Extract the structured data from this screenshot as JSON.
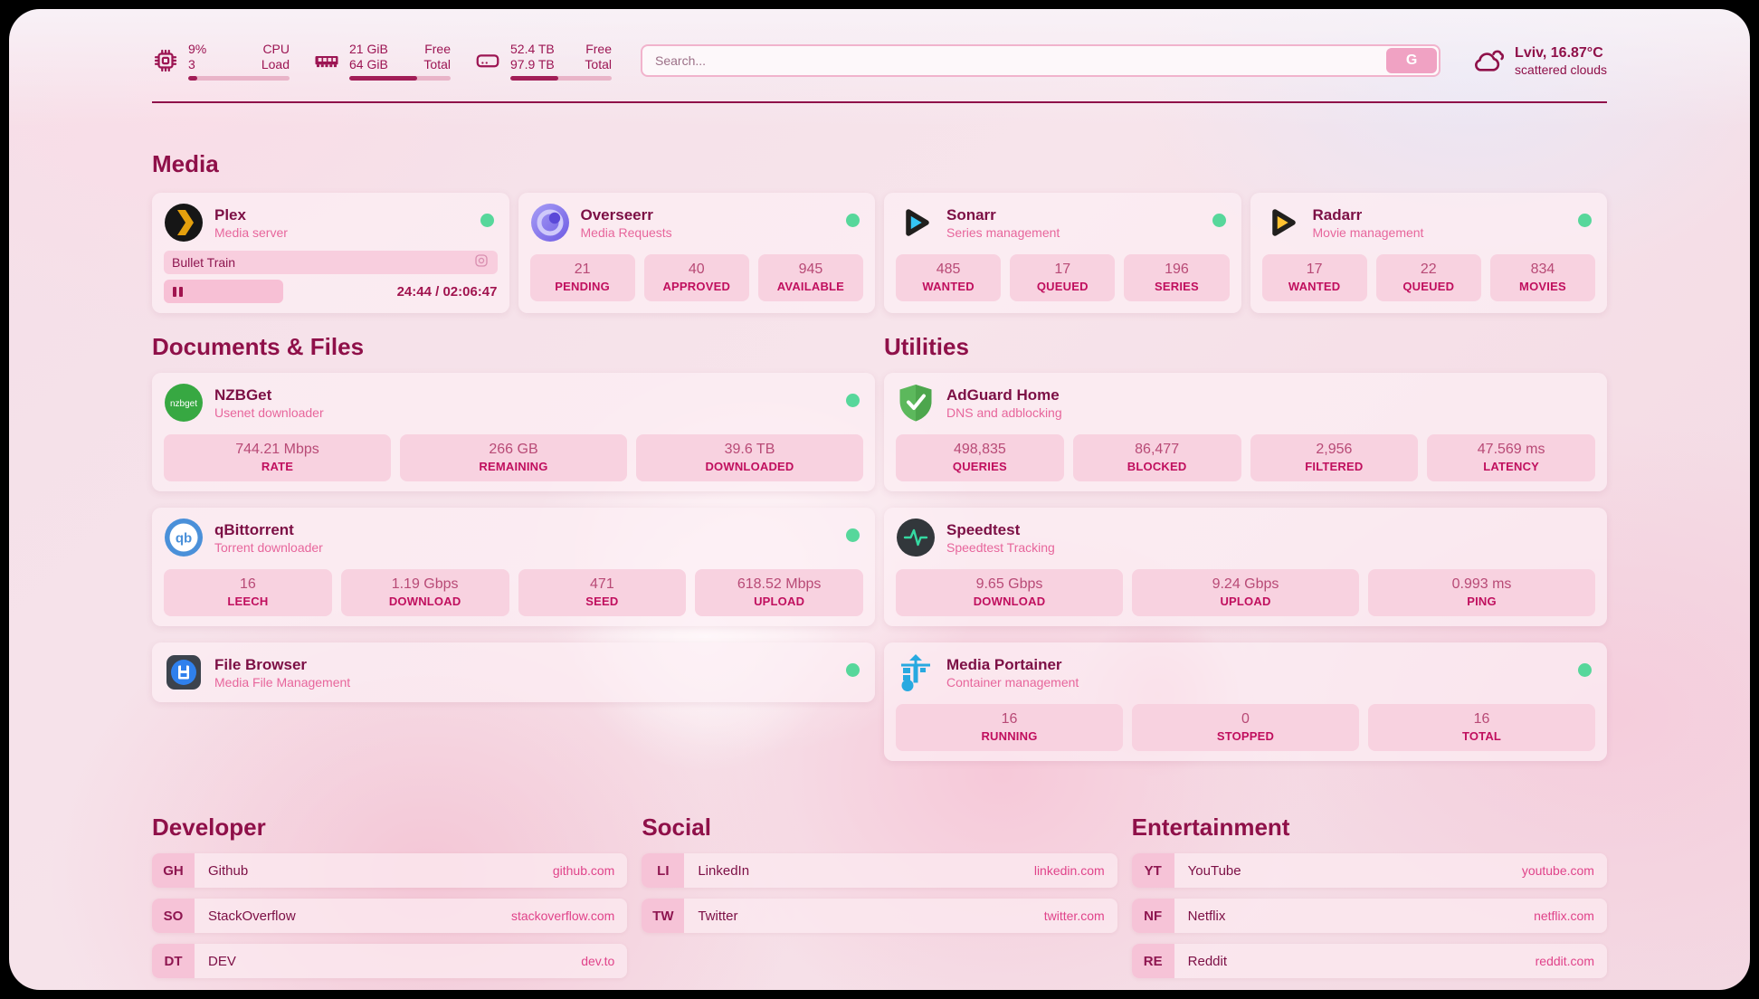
{
  "header": {
    "stats": [
      {
        "icon": "cpu-icon",
        "v1": "9%",
        "l1": "CPU",
        "v2": "3",
        "l2": "Load",
        "bar": 9
      },
      {
        "icon": "ram-icon",
        "v1": "21 GiB",
        "l1": "Free",
        "v2": "64 GiB",
        "l2": "Total",
        "bar": 67
      },
      {
        "icon": "disk-icon",
        "v1": "52.4 TB",
        "l1": "Free",
        "v2": "97.9 TB",
        "l2": "Total",
        "bar": 47
      }
    ],
    "search": {
      "placeholder": "Search...",
      "button_label": "G"
    },
    "weather": {
      "location": "Lviv, 16.87°C",
      "condition": "scattered clouds"
    }
  },
  "media": {
    "title": "Media",
    "plex": {
      "title": "Plex",
      "subtitle": "Media server",
      "online": true,
      "now_playing": "Bullet Train",
      "time": "24:44 / 02:06:47"
    },
    "overseerr": {
      "title": "Overseerr",
      "subtitle": "Media Requests",
      "online": true,
      "stats": [
        {
          "value": "21",
          "label": "PENDING"
        },
        {
          "value": "40",
          "label": "APPROVED"
        },
        {
          "value": "945",
          "label": "AVAILABLE"
        }
      ]
    },
    "sonarr": {
      "title": "Sonarr",
      "subtitle": "Series management",
      "online": true,
      "stats": [
        {
          "value": "485",
          "label": "WANTED"
        },
        {
          "value": "17",
          "label": "QUEUED"
        },
        {
          "value": "196",
          "label": "SERIES"
        }
      ]
    },
    "radarr": {
      "title": "Radarr",
      "subtitle": "Movie management",
      "online": true,
      "stats": [
        {
          "value": "17",
          "label": "WANTED"
        },
        {
          "value": "22",
          "label": "QUEUED"
        },
        {
          "value": "834",
          "label": "MOVIES"
        }
      ]
    }
  },
  "documents": {
    "title": "Documents & Files",
    "nzbget": {
      "title": "NZBGet",
      "subtitle": "Usenet downloader",
      "online": true,
      "stats": [
        {
          "value": "744.21 Mbps",
          "label": "RATE"
        },
        {
          "value": "266 GB",
          "label": "REMAINING"
        },
        {
          "value": "39.6 TB",
          "label": "DOWNLOADED"
        }
      ]
    },
    "qbittorrent": {
      "title": "qBittorrent",
      "subtitle": "Torrent downloader",
      "online": true,
      "stats": [
        {
          "value": "16",
          "label": "LEECH"
        },
        {
          "value": "1.19 Gbps",
          "label": "DOWNLOAD"
        },
        {
          "value": "471",
          "label": "SEED"
        },
        {
          "value": "618.52 Mbps",
          "label": "UPLOAD"
        }
      ]
    },
    "filebrowser": {
      "title": "File Browser",
      "subtitle": "Media File Management",
      "online": true
    }
  },
  "utilities": {
    "title": "Utilities",
    "adguard": {
      "title": "AdGuard Home",
      "subtitle": "DNS and adblocking",
      "stats": [
        {
          "value": "498,835",
          "label": "QUERIES"
        },
        {
          "value": "86,477",
          "label": "BLOCKED"
        },
        {
          "value": "2,956",
          "label": "FILTERED"
        },
        {
          "value": "47.569 ms",
          "label": "LATENCY"
        }
      ]
    },
    "speedtest": {
      "title": "Speedtest",
      "subtitle": "Speedtest Tracking",
      "stats": [
        {
          "value": "9.65 Gbps",
          "label": "DOWNLOAD"
        },
        {
          "value": "9.24 Gbps",
          "label": "UPLOAD"
        },
        {
          "value": "0.993 ms",
          "label": "PING"
        }
      ]
    },
    "portainer": {
      "title": "Media Portainer",
      "subtitle": "Container management",
      "online": true,
      "stats": [
        {
          "value": "16",
          "label": "RUNNING"
        },
        {
          "value": "0",
          "label": "STOPPED"
        },
        {
          "value": "16",
          "label": "TOTAL"
        }
      ]
    }
  },
  "developer": {
    "title": "Developer",
    "links": [
      {
        "badge": "GH",
        "label": "Github",
        "url": "github.com"
      },
      {
        "badge": "SO",
        "label": "StackOverflow",
        "url": "stackoverflow.com"
      },
      {
        "badge": "DT",
        "label": "DEV",
        "url": "dev.to"
      }
    ]
  },
  "social": {
    "title": "Social",
    "links": [
      {
        "badge": "LI",
        "label": "LinkedIn",
        "url": "linkedin.com"
      },
      {
        "badge": "TW",
        "label": "Twitter",
        "url": "twitter.com"
      }
    ]
  },
  "entertainment": {
    "title": "Entertainment",
    "links": [
      {
        "badge": "YT",
        "label": "YouTube",
        "url": "youtube.com"
      },
      {
        "badge": "NF",
        "label": "Netflix",
        "url": "netflix.com"
      },
      {
        "badge": "RE",
        "label": "Reddit",
        "url": "reddit.com"
      }
    ]
  },
  "colors": {
    "accent": "#8f1049",
    "subtitle_pink": "#e7669c",
    "status_green": "#57d79b",
    "url_pink": "#e0438a"
  }
}
